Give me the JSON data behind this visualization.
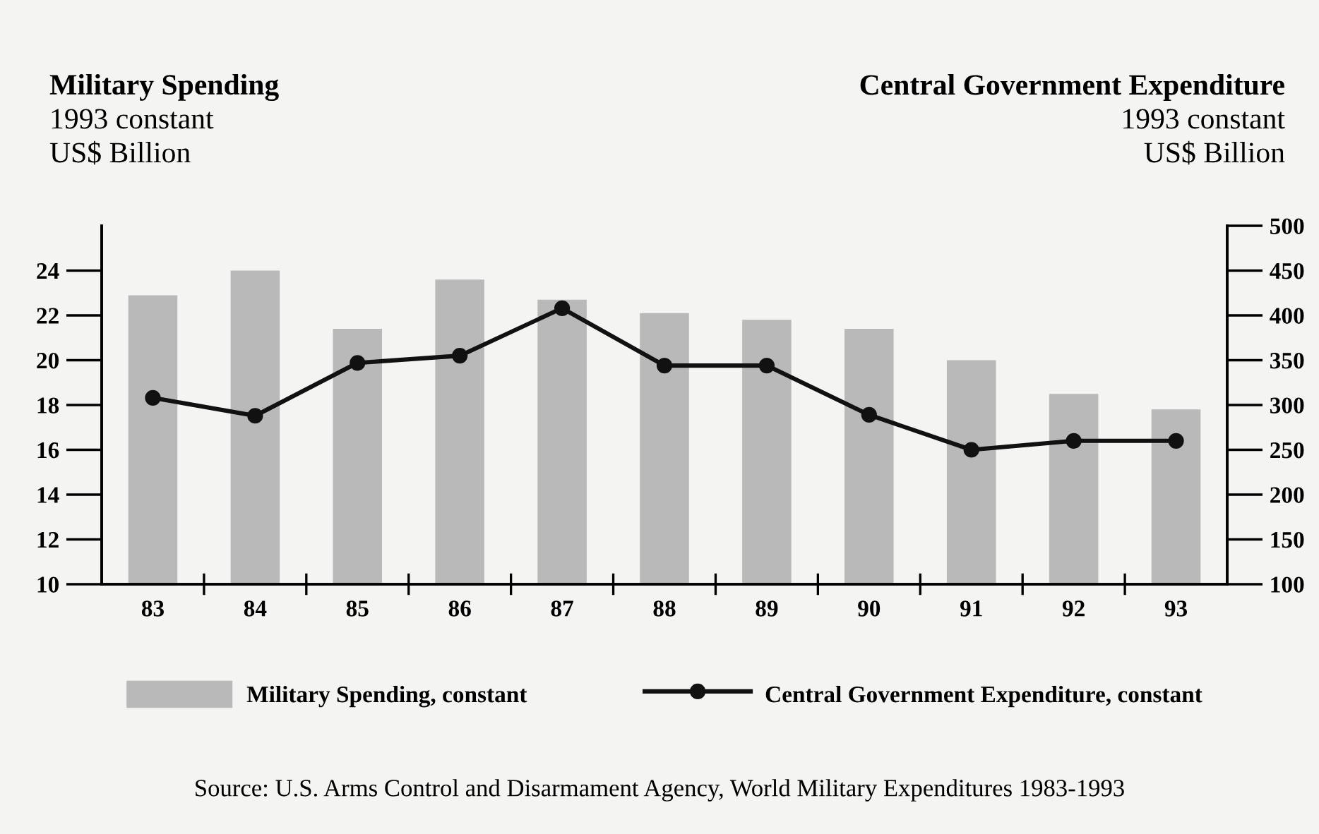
{
  "chart_data": {
    "type": "bar",
    "ylabel": "Military Spending\n1993 constant\nUS$ Billion",
    "y2label": "Central Government Expenditure\n1993 constant\nUS$ Billion",
    "categories": [
      "83",
      "84",
      "85",
      "86",
      "87",
      "88",
      "89",
      "90",
      "91",
      "92",
      "93"
    ],
    "series": [
      {
        "name": "Military Spending, constant",
        "color": "#b9b9b9",
        "values": [
          22.9,
          24.0,
          21.4,
          23.6,
          22.7,
          22.1,
          21.8,
          21.4,
          20.0,
          18.5,
          17.8
        ]
      },
      {
        "name": "Central Government Expenditure, constant",
        "type": "line",
        "axis": "y2",
        "color": "#111111",
        "values": [
          308,
          288,
          347,
          355,
          408,
          344,
          344,
          289,
          250,
          260,
          260
        ]
      }
    ],
    "ylim": [
      10,
      26
    ],
    "yticks": [
      10,
      12,
      14,
      16,
      18,
      20,
      22,
      24
    ],
    "y2lim": [
      100,
      500
    ],
    "y2ticks": [
      100,
      150,
      200,
      250,
      300,
      350,
      400,
      450,
      500
    ],
    "marker": "circle",
    "line_style": "solid",
    "grid": false,
    "legend": "bottom",
    "annotations": [
      "Source: U.S. Arms Control and Disarmament Agency, World Military Expenditures 1983-1993"
    ]
  }
}
